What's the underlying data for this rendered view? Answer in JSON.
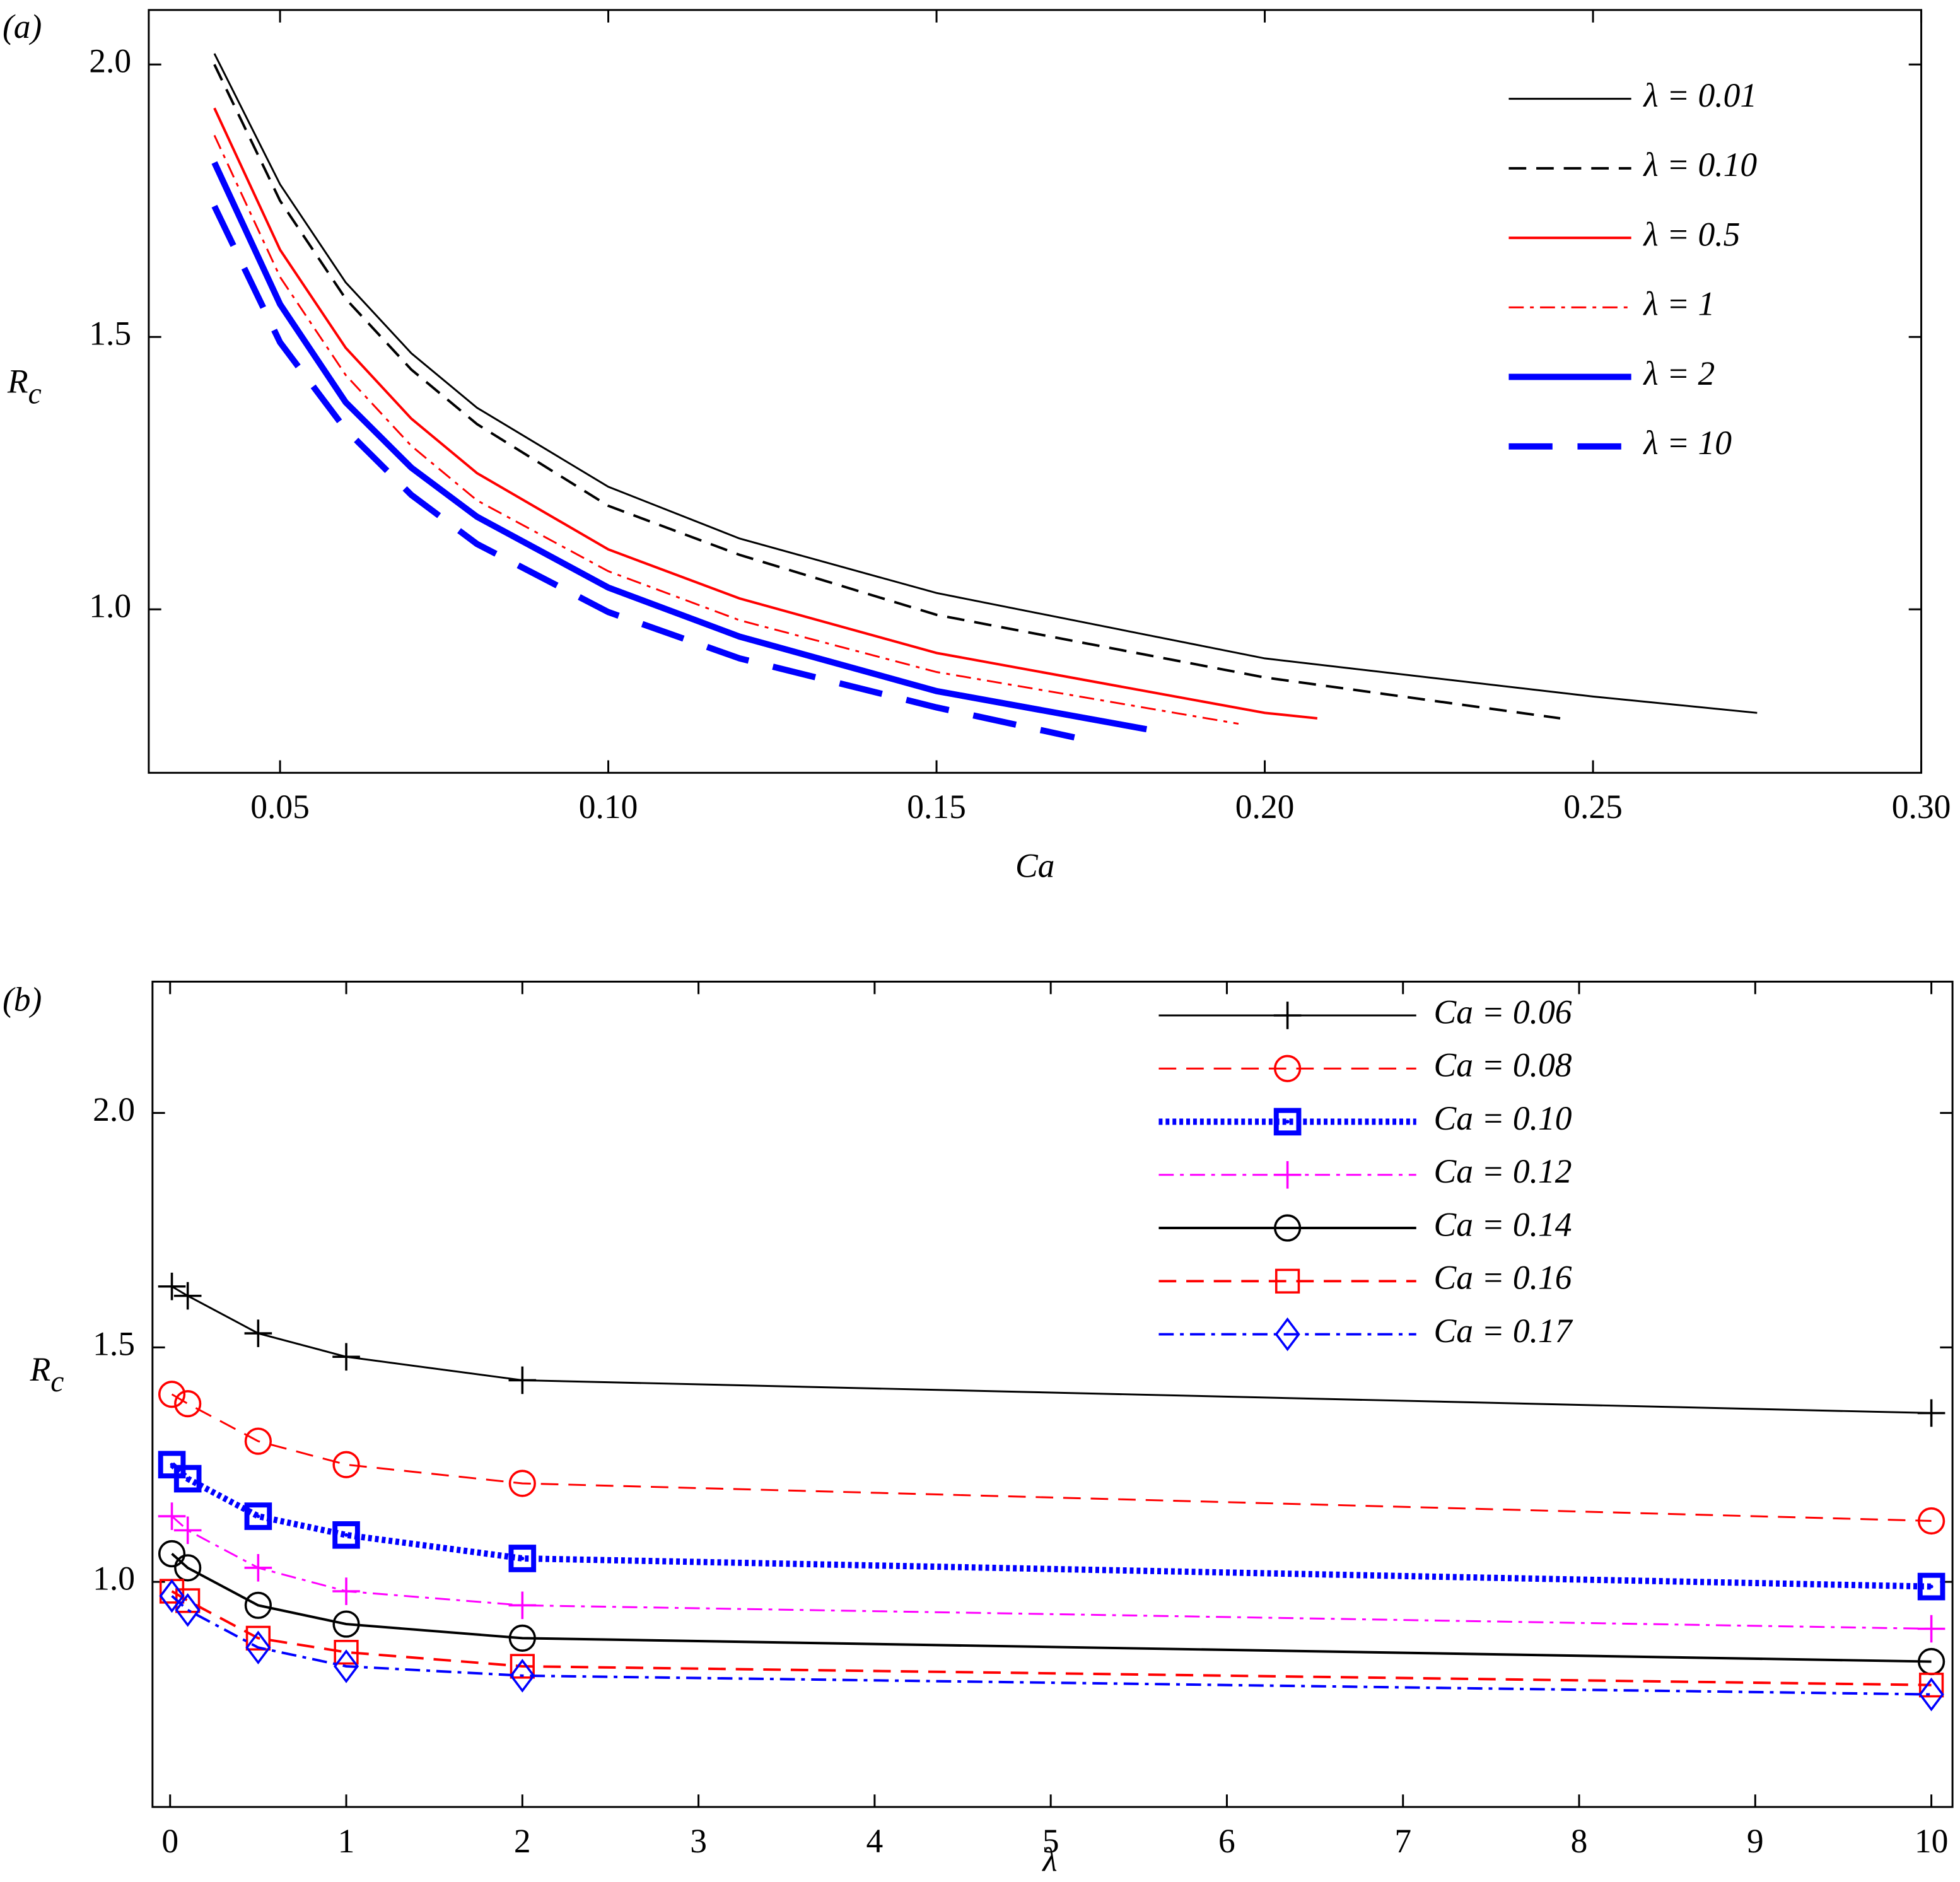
{
  "chart_data": [
    {
      "type": "line",
      "panel_label": "(a)",
      "xlabel": "Ca",
      "ylabel": "Rc",
      "xlim": [
        0.03,
        0.3
      ],
      "xticks": [
        {
          "value": 0.05,
          "label": "0.05"
        },
        {
          "value": 0.1,
          "label": "0.10"
        },
        {
          "value": 0.15,
          "label": "0.15"
        },
        {
          "value": 0.2,
          "label": "0.20"
        },
        {
          "value": 0.25,
          "label": "0.25"
        },
        {
          "value": 0.3,
          "label": "0.30"
        }
      ],
      "ylim": [
        0.7,
        2.1
      ],
      "yticks": [
        {
          "value": 1.0,
          "label": "1.0"
        },
        {
          "value": 1.5,
          "label": "1.5"
        },
        {
          "value": 2.0,
          "label": "2.0"
        }
      ],
      "legend": "upper right",
      "series": [
        {
          "name": "λ = 0.01",
          "color": "#000000",
          "linestyle": "solid",
          "linewidth": 1.5,
          "x": [
            0.04,
            0.05,
            0.06,
            0.07,
            0.08,
            0.1,
            0.12,
            0.15,
            0.2,
            0.25,
            0.275
          ],
          "values": [
            2.02,
            1.78,
            1.6,
            1.47,
            1.37,
            1.225,
            1.13,
            1.03,
            0.91,
            0.84,
            0.81
          ]
        },
        {
          "name": "λ = 0.10",
          "color": "#000000",
          "linestyle": "dashed",
          "linewidth": 2,
          "x": [
            0.04,
            0.05,
            0.06,
            0.07,
            0.08,
            0.1,
            0.12,
            0.15,
            0.2,
            0.245
          ],
          "values": [
            2.0,
            1.75,
            1.57,
            1.44,
            1.34,
            1.19,
            1.1,
            0.99,
            0.875,
            0.8
          ]
        },
        {
          "name": "λ = 0.5",
          "color": "#ff0000",
          "linestyle": "solid",
          "linewidth": 2,
          "x": [
            0.04,
            0.05,
            0.06,
            0.07,
            0.08,
            0.1,
            0.12,
            0.15,
            0.2,
            0.208
          ],
          "values": [
            1.92,
            1.66,
            1.48,
            1.35,
            1.25,
            1.11,
            1.02,
            0.92,
            0.81,
            0.8
          ]
        },
        {
          "name": "λ = 1",
          "color": "#ff0000",
          "linestyle": "dashdot",
          "linewidth": 1.5,
          "x": [
            0.04,
            0.05,
            0.06,
            0.07,
            0.08,
            0.1,
            0.12,
            0.15,
            0.196
          ],
          "values": [
            1.87,
            1.61,
            1.43,
            1.3,
            1.2,
            1.07,
            0.98,
            0.885,
            0.79
          ]
        },
        {
          "name": "λ = 2",
          "color": "#0000ff",
          "linestyle": "solid",
          "linewidth": 5,
          "x": [
            0.04,
            0.05,
            0.06,
            0.07,
            0.08,
            0.1,
            0.12,
            0.15,
            0.182
          ],
          "values": [
            1.82,
            1.56,
            1.38,
            1.26,
            1.17,
            1.04,
            0.95,
            0.85,
            0.78
          ]
        },
        {
          "name": "λ = 10",
          "color": "#0000ff",
          "linestyle": "dashed",
          "linewidth": 5,
          "x": [
            0.04,
            0.05,
            0.06,
            0.07,
            0.08,
            0.1,
            0.12,
            0.15,
            0.171
          ],
          "values": [
            1.74,
            1.49,
            1.33,
            1.21,
            1.12,
            0.995,
            0.91,
            0.82,
            0.765
          ]
        }
      ]
    },
    {
      "type": "line",
      "panel_label": "(b)",
      "xlabel": "λ",
      "ylabel": "Rc",
      "xlim": [
        -0.1,
        10.12
      ],
      "xticks": [
        0,
        1,
        2,
        3,
        4,
        5,
        6,
        7,
        8,
        9,
        10
      ],
      "ylim": [
        0.52,
        2.28
      ],
      "yticks": [
        {
          "value": 1.0,
          "label": "1.0"
        },
        {
          "value": 1.5,
          "label": "1.5"
        },
        {
          "value": 2.0,
          "label": "2.0"
        }
      ],
      "legend": "upper right",
      "x": [
        0.01,
        0.1,
        0.5,
        1,
        2,
        10
      ],
      "series": [
        {
          "name": "Ca = 0.06",
          "color": "#000000",
          "linestyle": "solid",
          "linewidth": 1.5,
          "marker": "plus",
          "values": [
            1.63,
            1.61,
            1.53,
            1.48,
            1.43,
            1.36
          ]
        },
        {
          "name": "Ca = 0.08",
          "color": "#ff0000",
          "linestyle": "dashed",
          "linewidth": 1.5,
          "marker": "circle",
          "values": [
            1.4,
            1.38,
            1.3,
            1.25,
            1.21,
            1.13
          ]
        },
        {
          "name": "Ca = 0.10",
          "color": "#0000ff",
          "linestyle": "dotted",
          "linewidth": 5,
          "marker": "square",
          "values": [
            1.25,
            1.22,
            1.14,
            1.1,
            1.05,
            0.99
          ]
        },
        {
          "name": "Ca = 0.12",
          "color": "#ff00ff",
          "linestyle": "dashdot",
          "linewidth": 1.5,
          "marker": "plus",
          "values": [
            1.14,
            1.11,
            1.03,
            0.98,
            0.95,
            0.9
          ]
        },
        {
          "name": "Ca = 0.14",
          "color": "#000000",
          "linestyle": "solid",
          "linewidth": 2,
          "marker": "circle",
          "values": [
            1.06,
            1.03,
            0.95,
            0.91,
            0.88,
            0.83
          ]
        },
        {
          "name": "Ca = 0.16",
          "color": "#ff0000",
          "linestyle": "dashed",
          "linewidth": 2,
          "marker": "square",
          "values": [
            0.98,
            0.96,
            0.88,
            0.85,
            0.82,
            0.78
          ]
        },
        {
          "name": "Ca = 0.17",
          "color": "#0000ff",
          "linestyle": "dashdot",
          "linewidth": 2,
          "marker": "diamond",
          "values": [
            0.97,
            0.94,
            0.86,
            0.82,
            0.8,
            0.76
          ]
        }
      ]
    }
  ]
}
